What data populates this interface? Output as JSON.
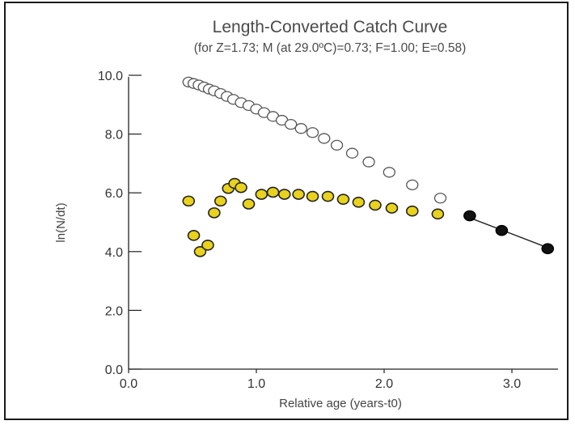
{
  "chart_data": {
    "type": "scatter",
    "title": "Length-Converted Catch Curve",
    "subtitle": "(for Z=1.73; M (at 29.0ºC)=0.73; F=1.00; E=0.58)",
    "xlabel": "Relative age (years-t0)",
    "ylabel": "ln(N/dt)",
    "xlim": [
      0,
      3.3
    ],
    "ylim": [
      0,
      10
    ],
    "x_ticks": [
      "0.0",
      "1.0",
      "2.0",
      "3.0"
    ],
    "y_ticks": [
      "0.0",
      "2.0",
      "4.0",
      "6.0",
      "8.0",
      "10.0"
    ],
    "grid": false,
    "series": [
      {
        "color": "#ffffff",
        "stroke": "#555555",
        "x": [
          0.47,
          0.51,
          0.55,
          0.59,
          0.63,
          0.67,
          0.72,
          0.77,
          0.82,
          0.88,
          0.94,
          1.0,
          1.06,
          1.13,
          1.2,
          1.27,
          1.35,
          1.44,
          1.53,
          1.63,
          1.75,
          1.88,
          2.04,
          2.22,
          2.44
        ],
        "y": [
          9.77,
          9.72,
          9.67,
          9.6,
          9.53,
          9.47,
          9.38,
          9.28,
          9.18,
          9.07,
          8.97,
          8.85,
          8.73,
          8.6,
          8.47,
          8.33,
          8.19,
          8.05,
          7.85,
          7.62,
          7.35,
          7.05,
          6.7,
          6.27,
          5.82
        ]
      },
      {
        "color": "#e8d21c",
        "stroke": "#222222",
        "x": [
          0.47,
          0.51,
          0.56,
          0.62,
          0.67,
          0.72,
          0.78,
          0.83,
          0.88,
          0.94,
          1.04,
          1.13,
          1.22,
          1.33,
          1.44,
          1.56,
          1.68,
          1.8,
          1.93,
          2.06,
          2.22,
          2.42
        ],
        "y": [
          5.72,
          4.55,
          4.0,
          4.22,
          5.32,
          5.72,
          6.15,
          6.32,
          6.18,
          5.62,
          5.95,
          6.02,
          5.95,
          5.95,
          5.88,
          5.88,
          5.78,
          5.68,
          5.58,
          5.48,
          5.38,
          5.28
        ]
      },
      {
        "color": "#111111",
        "stroke": "#000000",
        "x": [
          2.67,
          2.92,
          3.28
        ],
        "y": [
          5.22,
          4.72,
          4.1
        ]
      }
    ],
    "regression_line": {
      "x": [
        2.67,
        3.3
      ],
      "y": [
        5.15,
        4.1
      ]
    }
  }
}
